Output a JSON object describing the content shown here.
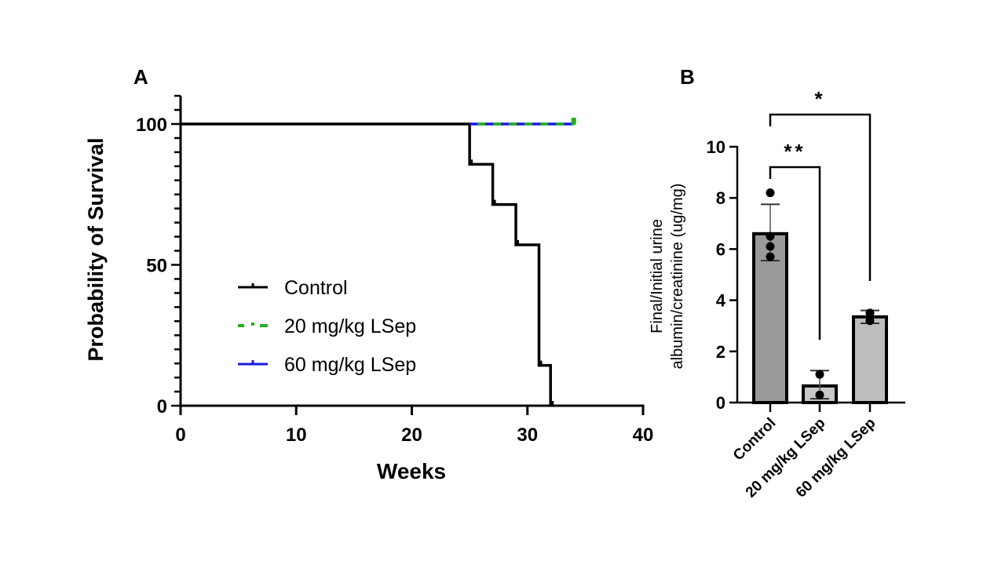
{
  "chart_data": [
    {
      "panel": "A",
      "type": "line",
      "subtype": "kaplan-meier step",
      "title": "",
      "xlabel": "Weeks",
      "ylabel": "Probability of Survival",
      "xlim": [
        0,
        40
      ],
      "ylim": [
        0,
        110
      ],
      "xticks": [
        0,
        10,
        20,
        30,
        40
      ],
      "yticks": [
        0,
        50,
        100
      ],
      "y_minor_tick_step": 5,
      "legend_position": "center-left",
      "series": [
        {
          "name": "Control",
          "color": "#000000",
          "style": "solid",
          "steps": [
            {
              "x": 0,
              "y": 100
            },
            {
              "x": 25,
              "y": 85.7
            },
            {
              "x": 27,
              "y": 71.4
            },
            {
              "x": 29,
              "y": 57.1
            },
            {
              "x": 31,
              "y": 14.3
            },
            {
              "x": 32,
              "y": 0
            }
          ],
          "end_x": 32
        },
        {
          "name": "20 mg/kg LSep",
          "color": "#22b022",
          "style": "dashed",
          "steps": [
            {
              "x": 0,
              "y": 100
            }
          ],
          "end_x": 34
        },
        {
          "name": "60 mg/kg LSep",
          "color": "#1a1adb",
          "style": "solid",
          "steps": [
            {
              "x": 0,
              "y": 100
            }
          ],
          "end_x": 34
        }
      ]
    },
    {
      "panel": "B",
      "type": "bar",
      "title": "",
      "xlabel": "",
      "ylabel_line1": "Final/Initial urine",
      "ylabel_line2": "albumin/creatinine (ug/mg)",
      "ylim": [
        0,
        10
      ],
      "yticks": [
        0,
        2,
        4,
        6,
        8,
        10
      ],
      "categories": [
        "Control",
        "20 mg/kg LSep",
        "60 mg/kg LSep"
      ],
      "values": [
        6.6,
        0.65,
        3.35
      ],
      "error_upper": [
        7.75,
        1.25,
        3.6
      ],
      "error_lower": [
        5.55,
        0.15,
        3.1
      ],
      "points": [
        [
          8.2,
          6.5,
          6.1,
          5.7
        ],
        [
          1.1,
          0.3
        ],
        [
          3.5,
          3.2
        ]
      ],
      "bar_colors": [
        "#9a9a9a",
        "#c8c8c8",
        "#bdbdbd"
      ],
      "significance": [
        {
          "from": 0,
          "to": 1,
          "label": "**"
        },
        {
          "from": 0,
          "to": 2,
          "label": "*"
        }
      ]
    }
  ],
  "panels": {
    "a_label": "A",
    "b_label": "B"
  }
}
